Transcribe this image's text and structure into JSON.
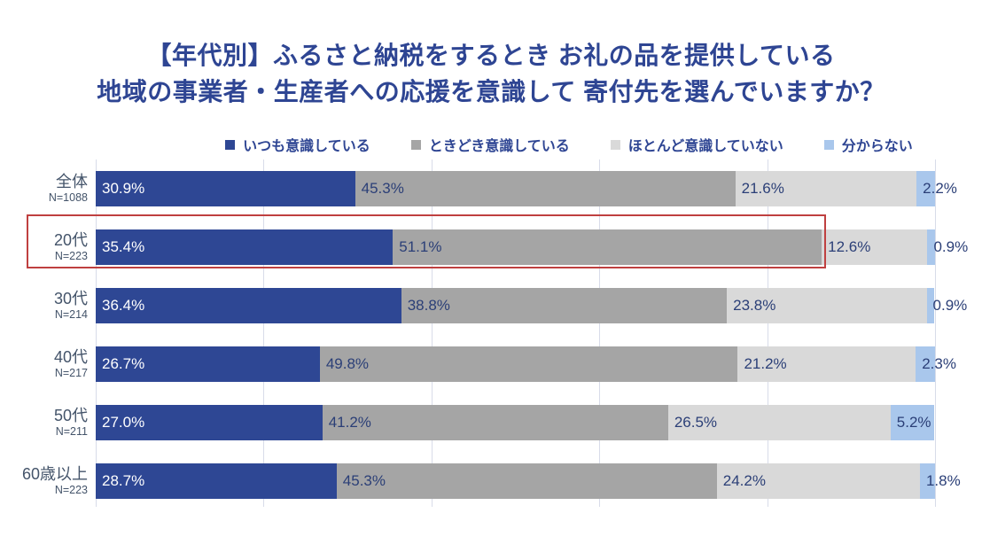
{
  "title": {
    "line1": "【年代別】ふるさと納税をするとき お礼の品を提供している",
    "line2": "地域の事業者・生産者への応援を意識して 寄付先を選んでいますか？"
  },
  "colors": {
    "title_text": "#2e4593",
    "legend_text": "#2e4593",
    "category_text": "#44546a",
    "value_text": "#2b3f77",
    "value_text_on_dark": "#ffffff",
    "gridline": "#d8dce9",
    "background": "#ffffff"
  },
  "chart_data": {
    "type": "bar",
    "orientation": "horizontal-stacked",
    "title": "【年代別】ふるさと納税をするとき お礼の品を提供している 地域の事業者・生産者への応援を意識して 寄付先を選んでいますか？",
    "value_unit": "%",
    "xlim": [
      0,
      100
    ],
    "gridline_step_percent": 20,
    "legend_position": "top",
    "categories": [
      {
        "label": "全体",
        "n": "N=1088"
      },
      {
        "label": "20代",
        "n": "N=223"
      },
      {
        "label": "30代",
        "n": "N=214"
      },
      {
        "label": "40代",
        "n": "N=217"
      },
      {
        "label": "50代",
        "n": "N=211"
      },
      {
        "label": "60歳以上",
        "n": "N=223"
      }
    ],
    "series": [
      {
        "name": "いつも意識している",
        "color": "#2e4794",
        "values": [
          30.9,
          35.4,
          36.4,
          26.7,
          27.0,
          28.7
        ]
      },
      {
        "name": "ときどき意識している",
        "color": "#a5a5a5",
        "values": [
          45.3,
          51.1,
          38.8,
          49.8,
          41.2,
          45.3
        ]
      },
      {
        "name": "ほとんど意識していない",
        "color": "#d9d9d9",
        "values": [
          21.6,
          12.6,
          23.8,
          21.2,
          26.5,
          24.2
        ]
      },
      {
        "name": "分からない",
        "color": "#a9c7ec",
        "values": [
          2.2,
          0.9,
          0.9,
          2.3,
          5.2,
          1.8
        ]
      }
    ],
    "highlight": {
      "category": "20代",
      "box_color": "#bf4040"
    }
  }
}
